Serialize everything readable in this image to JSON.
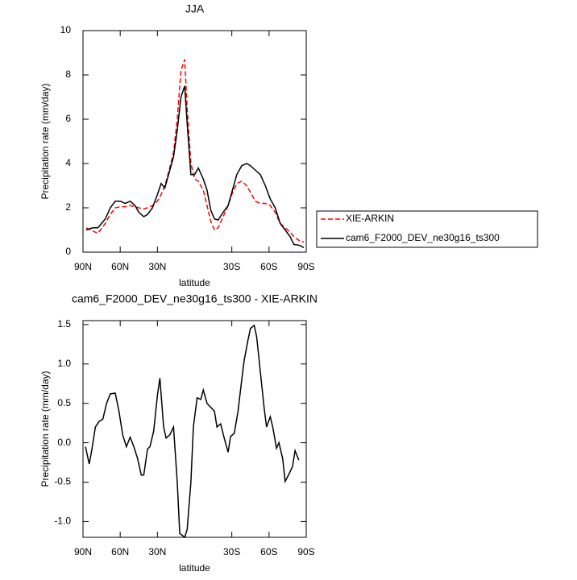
{
  "chart_data": [
    {
      "type": "line",
      "title": "JJA",
      "xlabel": "latitude",
      "ylabel": "Precipitation rate (mm/day)",
      "x": [
        87.5,
        82,
        78,
        72,
        68,
        64,
        60,
        56,
        52,
        48,
        45,
        41,
        38,
        34,
        30,
        27,
        24,
        21,
        17,
        14,
        11,
        8,
        6,
        3,
        0,
        -3,
        -7,
        -10,
        -13,
        -16,
        -19,
        -23,
        -27,
        -30,
        -34,
        -38,
        -42,
        -45,
        -49,
        -53,
        -57,
        -61,
        -65,
        -69,
        -73,
        -77,
        -80,
        -85,
        -88
      ],
      "series": [
        {
          "name": "XIE-ARKIN",
          "color": "#ff0000",
          "dashed": true,
          "values": [
            1.1,
            0.95,
            0.85,
            1.3,
            1.7,
            2.0,
            2.05,
            2.05,
            2.1,
            2.05,
            2.0,
            1.95,
            2.0,
            2.1,
            2.3,
            2.6,
            3.0,
            3.6,
            4.5,
            6.0,
            8.2,
            8.7,
            6.5,
            4.0,
            3.3,
            3.2,
            2.8,
            2.1,
            1.4,
            1.0,
            1.1,
            1.6,
            2.1,
            2.6,
            3.1,
            3.2,
            3.0,
            2.7,
            2.3,
            2.2,
            2.2,
            2.1,
            1.8,
            1.3,
            1.1,
            0.9,
            0.7,
            0.5,
            0.45
          ]
        },
        {
          "name": "cam6_F2000_DEV_ne30g16_ts300",
          "color": "#000000",
          "dashed": false,
          "values": [
            1.0,
            1.1,
            1.1,
            1.5,
            2.0,
            2.3,
            2.3,
            2.2,
            2.3,
            2.1,
            1.8,
            1.6,
            1.7,
            2.0,
            2.6,
            3.1,
            2.9,
            3.5,
            4.3,
            5.5,
            7.0,
            7.5,
            5.8,
            3.5,
            3.5,
            3.8,
            3.3,
            2.8,
            1.9,
            1.5,
            1.45,
            1.8,
            2.1,
            2.7,
            3.5,
            3.9,
            4.0,
            3.9,
            3.7,
            3.5,
            3.0,
            2.4,
            2.0,
            1.3,
            1.0,
            0.7,
            0.35,
            0.3,
            0.2
          ]
        }
      ],
      "xlim": [
        90,
        -90
      ],
      "xticks": [
        {
          "value": 90,
          "label": "90N"
        },
        {
          "value": 60,
          "label": "60N"
        },
        {
          "value": 30,
          "label": "30N"
        },
        {
          "value": -30,
          "label": "30S"
        },
        {
          "value": -60,
          "label": "60S"
        },
        {
          "value": -90,
          "label": "90S"
        }
      ],
      "ylim": [
        0,
        10
      ],
      "yticks": [
        0,
        2,
        4,
        6,
        8,
        10
      ],
      "legend": "right"
    },
    {
      "type": "line",
      "title": "cam6_F2000_DEV_ne30g16_ts300 - XIE-ARKIN",
      "xlabel": "latitude",
      "ylabel": "Precipitation rate (mm/day)",
      "x": [
        88,
        85,
        83,
        80,
        77,
        74,
        71,
        68,
        64,
        61,
        58,
        55,
        52,
        49,
        46,
        43,
        41,
        38,
        36,
        33,
        30,
        28,
        25,
        23,
        20,
        17,
        14,
        12,
        8,
        6,
        3,
        1,
        -2,
        -5,
        -7,
        -10,
        -13,
        -16,
        -18,
        -21,
        -24,
        -27,
        -29,
        -32,
        -35,
        -38,
        -40,
        -43,
        -45,
        -48,
        -50,
        -53,
        -56,
        -58,
        -61,
        -63,
        -66,
        -68,
        -71,
        -73,
        -76,
        -79,
        -81,
        -84
      ],
      "color": "#000000",
      "values": [
        -0.05,
        -0.27,
        -0.1,
        0.2,
        0.27,
        0.3,
        0.5,
        0.62,
        0.63,
        0.4,
        0.1,
        -0.05,
        0.07,
        -0.05,
        -0.2,
        -0.41,
        -0.41,
        -0.08,
        -0.05,
        0.15,
        0.6,
        0.82,
        0.2,
        0.06,
        0.1,
        0.2,
        -0.5,
        -1.15,
        -1.2,
        -1.1,
        -0.5,
        0.2,
        0.57,
        0.55,
        0.67,
        0.5,
        0.45,
        0.4,
        0.2,
        0.24,
        0.05,
        -0.12,
        0.08,
        0.12,
        0.4,
        0.8,
        1.05,
        1.3,
        1.45,
        1.49,
        1.35,
        0.9,
        0.45,
        0.2,
        0.33,
        0.2,
        -0.07,
        0.0,
        -0.2,
        -0.49,
        -0.4,
        -0.3,
        -0.1,
        -0.22
      ],
      "xlim": [
        90,
        -90
      ],
      "xticks": [
        {
          "value": 90,
          "label": "90N"
        },
        {
          "value": 60,
          "label": "60N"
        },
        {
          "value": 30,
          "label": "30N"
        },
        {
          "value": -30,
          "label": "30S"
        },
        {
          "value": -60,
          "label": "60S"
        },
        {
          "value": -90,
          "label": "90S"
        }
      ],
      "ylim": [
        -1.2,
        1.55
      ],
      "yticks": [
        {
          "value": -1.0,
          "label": "-1.0"
        },
        -0.5,
        {
          "value": 0,
          "label": "0.0"
        },
        0.5,
        {
          "value": 1.0,
          "label": "1.0"
        },
        1.5
      ]
    }
  ]
}
